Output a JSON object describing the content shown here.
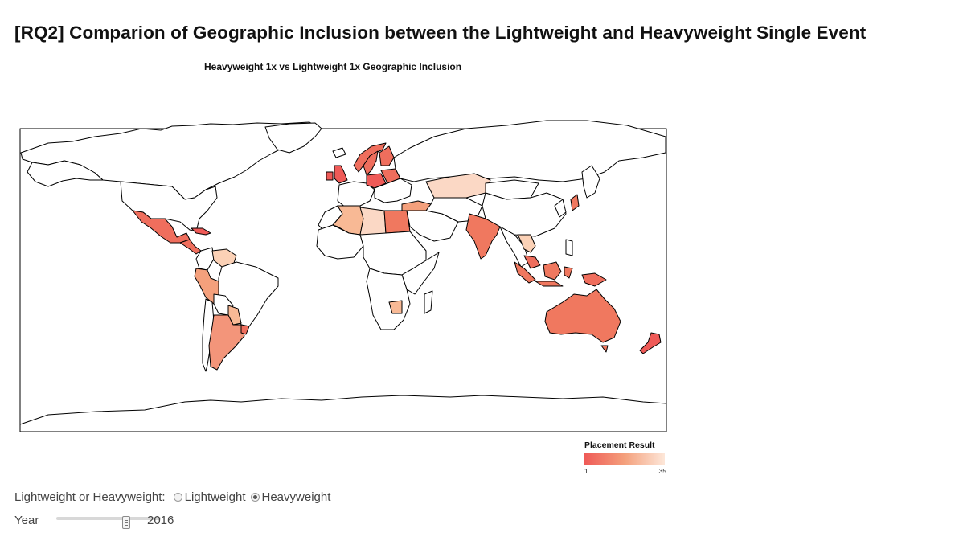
{
  "page": {
    "title": "[RQ2] Comparion of Geographic Inclusion between the Lightweight and Heavyweight Single Event"
  },
  "map": {
    "title": "Heavyweight 1x vs Lightweight 1x Geographic Inclusion",
    "fill_default": "#ffffff",
    "border_color": "#000000",
    "colored_countries": [
      {
        "name": "Mexico",
        "color": "#ef6e5d"
      },
      {
        "name": "Cuba",
        "color": "#ef5a57"
      },
      {
        "name": "Venezuela",
        "color": "#fbd1b6"
      },
      {
        "name": "Peru",
        "color": "#f4a07c"
      },
      {
        "name": "Paraguay",
        "color": "#f8b995"
      },
      {
        "name": "Argentina",
        "color": "#f3957a"
      },
      {
        "name": "Uruguay",
        "color": "#ef6e5d"
      },
      {
        "name": "Norway",
        "color": "#ef6e5d"
      },
      {
        "name": "Sweden",
        "color": "#ef6e5d"
      },
      {
        "name": "Finland",
        "color": "#ef6e5d"
      },
      {
        "name": "Great Britain",
        "color": "#ef5a57"
      },
      {
        "name": "Ireland",
        "color": "#ef5a57"
      },
      {
        "name": "Poland",
        "color": "#ef5a57"
      },
      {
        "name": "Belarus",
        "color": "#ef6e5d"
      },
      {
        "name": "Kazakhstan",
        "color": "#fbd8c5"
      },
      {
        "name": "Algeria",
        "color": "#f8b995"
      },
      {
        "name": "Libya",
        "color": "#fbd8c5"
      },
      {
        "name": "Egypt",
        "color": "#f0785f"
      },
      {
        "name": "Turkey",
        "color": "#f4a07c"
      },
      {
        "name": "India",
        "color": "#f0785f"
      },
      {
        "name": "Thailand",
        "color": "#fbd1b6"
      },
      {
        "name": "Malaysia",
        "color": "#ef6e5d"
      },
      {
        "name": "Indonesia",
        "color": "#f0785f"
      },
      {
        "name": "Australia",
        "color": "#f0785f"
      },
      {
        "name": "New Zealand",
        "color": "#ef5a57"
      },
      {
        "name": "Zimbabwe",
        "color": "#f8b995"
      },
      {
        "name": "Japan",
        "color": "#f0785f"
      }
    ]
  },
  "legend": {
    "title": "Placement Result",
    "min": "1",
    "max": "35",
    "gradient_start": "#ef5a57",
    "gradient_end": "#fde7d9"
  },
  "controls": {
    "weight_label": "Lightweight or Heavyweight:",
    "options": [
      "Lightweight",
      "Heavyweight"
    ],
    "selected": "Heavyweight",
    "year_label": "Year",
    "year_value": "2016"
  }
}
